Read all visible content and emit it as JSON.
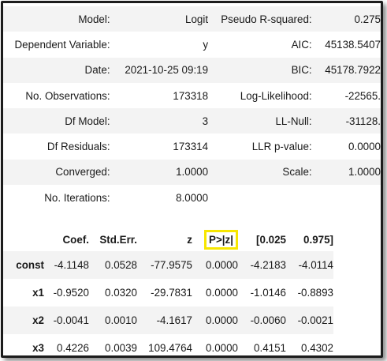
{
  "summary": {
    "rows": [
      {
        "label1": "Model:",
        "value1": "Logit",
        "label2": "Pseudo R-squared:",
        "value2": "0.275"
      },
      {
        "label1": "Dependent Variable:",
        "value1": "y",
        "label2": "AIC:",
        "value2": "45138.5407"
      },
      {
        "label1": "Date:",
        "value1": "2021-10-25 09:19",
        "label2": "BIC:",
        "value2": "45178.7922"
      },
      {
        "label1": "No. Observations:",
        "value1": "173318",
        "label2": "Log-Likelihood:",
        "value2": "-22565."
      },
      {
        "label1": "Df Model:",
        "value1": "3",
        "label2": "LL-Null:",
        "value2": "-31128."
      },
      {
        "label1": "Df Residuals:",
        "value1": "173314",
        "label2": "LLR p-value:",
        "value2": "0.0000"
      },
      {
        "label1": "Converged:",
        "value1": "1.0000",
        "label2": "Scale:",
        "value2": "1.0000"
      },
      {
        "label1": "No. Iterations:",
        "value1": "8.0000",
        "label2": "",
        "value2": ""
      }
    ]
  },
  "params": {
    "headers": [
      "",
      "Coef.",
      "Std.Err.",
      "z",
      "P>|z|",
      "[0.025",
      "0.975]"
    ],
    "rows": [
      {
        "name": "const",
        "values": [
          "-4.1148",
          "0.0528",
          "-77.9575",
          "0.0000",
          "-4.2183",
          "-4.0114"
        ]
      },
      {
        "name": "x1",
        "values": [
          "-0.9520",
          "0.0320",
          "-29.7831",
          "0.0000",
          "-1.0146",
          "-0.8893"
        ]
      },
      {
        "name": "x2",
        "values": [
          "-0.0041",
          "0.0010",
          "-4.1617",
          "0.0000",
          "-0.0060",
          "-0.0021"
        ]
      },
      {
        "name": "x3",
        "values": [
          "0.4226",
          "0.0039",
          "109.4764",
          "0.0000",
          "0.4151",
          "0.4302"
        ]
      }
    ],
    "highlight_color": "#f7e600"
  }
}
